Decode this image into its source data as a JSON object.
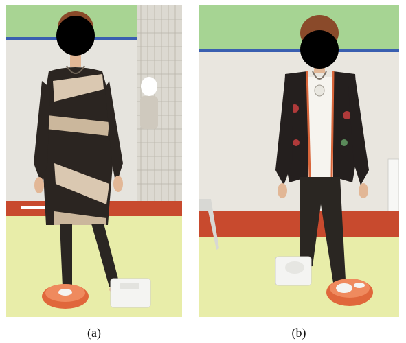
{
  "figure": {
    "panels": [
      {
        "id": "a",
        "caption": "(a)"
      },
      {
        "id": "b",
        "caption": "(b)"
      }
    ]
  },
  "colors": {
    "wall": "#e9e6df",
    "wall_green": "#9fd28d",
    "floor": "#e8eda9",
    "floor_red": "#c84a2e",
    "face_mask": "#000000",
    "scale_orange": "#e0673b",
    "scale_white": "#f4f4f2"
  }
}
